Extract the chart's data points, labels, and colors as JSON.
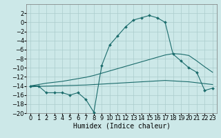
{
  "xlabel": "Humidex (Indice chaleur)",
  "background_color": "#cce8e8",
  "grid_color": "#aacccc",
  "line_color": "#1a6b6b",
  "xlim": [
    -0.5,
    23.5
  ],
  "ylim": [
    -20,
    4
  ],
  "xticks": [
    0,
    1,
    2,
    3,
    4,
    5,
    6,
    7,
    8,
    9,
    10,
    11,
    12,
    13,
    14,
    15,
    16,
    17,
    18,
    19,
    20,
    21,
    22,
    23
  ],
  "yticks": [
    2,
    0,
    -2,
    -4,
    -6,
    -8,
    -10,
    -12,
    -14,
    -16,
    -18,
    -20
  ],
  "main_y": [
    -14,
    -14,
    -15.5,
    -15.5,
    -15.5,
    -16,
    -15.5,
    -17,
    -19.8,
    -9.5,
    -5,
    -3,
    -1,
    0.5,
    1,
    1.5,
    1,
    0,
    -7,
    -8.5,
    -10,
    -11,
    -15,
    -14.5
  ],
  "line2_y": [
    -14,
    -13.7,
    -13.4,
    -13.2,
    -13.0,
    -12.7,
    -12.4,
    -12.1,
    -11.7,
    -11.2,
    -10.7,
    -10.2,
    -9.7,
    -9.2,
    -8.7,
    -8.2,
    -7.7,
    -7.2,
    -6.9,
    -7.0,
    -7.3,
    -8.5,
    -9.8,
    -11.0
  ],
  "line3_y": [
    -14.2,
    -14.1,
    -14.05,
    -14.0,
    -13.95,
    -13.9,
    -13.85,
    -13.8,
    -13.7,
    -13.6,
    -13.5,
    -13.4,
    -13.3,
    -13.2,
    -13.1,
    -13.0,
    -12.9,
    -12.8,
    -12.9,
    -13.0,
    -13.1,
    -13.3,
    -13.5,
    -13.7
  ],
  "fontsize_xlabel": 7,
  "fontsize_ticks": 6
}
